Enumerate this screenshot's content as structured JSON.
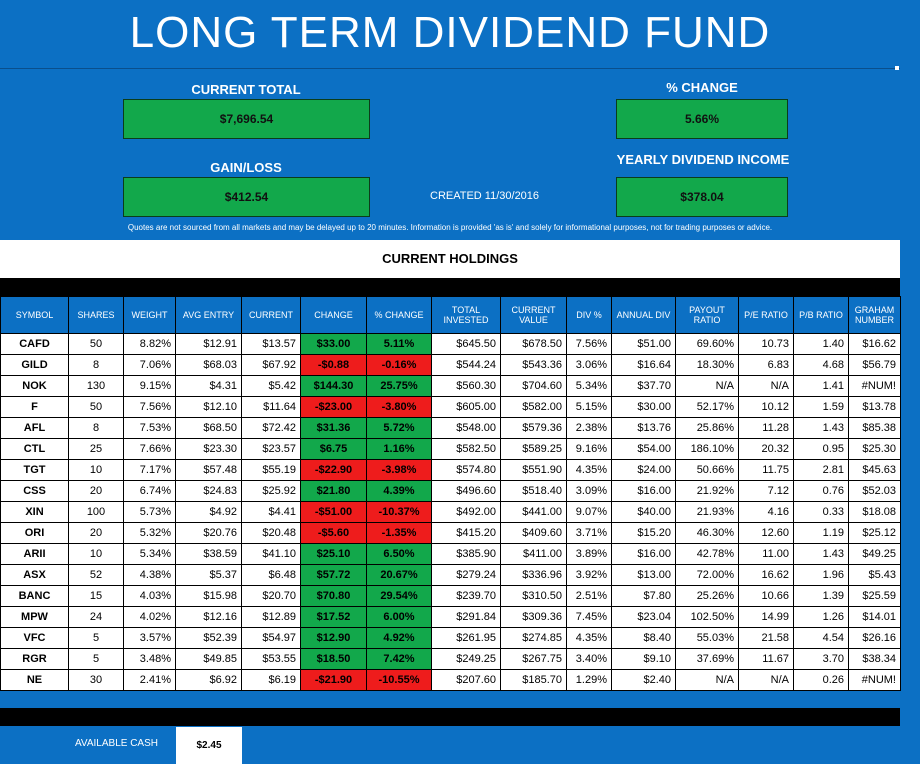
{
  "title": "LONG TERM DIVIDEND FUND",
  "current_total": {
    "label": "CURRENT TOTAL",
    "value": "$7,696.54"
  },
  "pct_change": {
    "label": "% CHANGE",
    "value": "5.66%"
  },
  "gain_loss": {
    "label": "GAIN/LOSS",
    "value": "$412.54"
  },
  "yearly_dividend": {
    "label": "YEARLY DIVIDEND INCOME",
    "value": "$378.04"
  },
  "created": "CREATED 11/30/2016",
  "disclaimer": "Quotes are not sourced from all markets and may be delayed up to 20 minutes. Information is provided 'as is' and solely for informational purposes, not for trading purposes or advice.",
  "holdings_title": "CURRENT HOLDINGS",
  "columns": [
    "SYMBOL",
    "SHARES",
    "WEIGHT",
    "AVG ENTRY",
    "CURRENT",
    "CHANGE",
    "% CHANGE",
    "TOTAL INVESTED",
    "CURRENT VALUE",
    "DIV %",
    "ANNUAL DIV",
    "PAYOUT RATIO",
    "P/E RATIO",
    "P/B RATIO",
    "GRAHAM NUMBER"
  ],
  "rows": [
    [
      "CAFD",
      "50",
      "8.82%",
      "$12.91",
      "$13.57",
      "$33.00",
      "5.11%",
      "$645.50",
      "$678.50",
      "7.56%",
      "$51.00",
      "69.60%",
      "10.73",
      "1.40",
      "$16.62"
    ],
    [
      "GILD",
      "8",
      "7.06%",
      "$68.03",
      "$67.92",
      "-$0.88",
      "-0.16%",
      "$544.24",
      "$543.36",
      "3.06%",
      "$16.64",
      "18.30%",
      "6.83",
      "4.68",
      "$56.79"
    ],
    [
      "NOK",
      "130",
      "9.15%",
      "$4.31",
      "$5.42",
      "$144.30",
      "25.75%",
      "$560.30",
      "$704.60",
      "5.34%",
      "$37.70",
      "N/A",
      "N/A",
      "1.41",
      "#NUM!"
    ],
    [
      "F",
      "50",
      "7.56%",
      "$12.10",
      "$11.64",
      "-$23.00",
      "-3.80%",
      "$605.00",
      "$582.00",
      "5.15%",
      "$30.00",
      "52.17%",
      "10.12",
      "1.59",
      "$13.78"
    ],
    [
      "AFL",
      "8",
      "7.53%",
      "$68.50",
      "$72.42",
      "$31.36",
      "5.72%",
      "$548.00",
      "$579.36",
      "2.38%",
      "$13.76",
      "25.86%",
      "11.28",
      "1.43",
      "$85.38"
    ],
    [
      "CTL",
      "25",
      "7.66%",
      "$23.30",
      "$23.57",
      "$6.75",
      "1.16%",
      "$582.50",
      "$589.25",
      "9.16%",
      "$54.00",
      "186.10%",
      "20.32",
      "0.95",
      "$25.30"
    ],
    [
      "TGT",
      "10",
      "7.17%",
      "$57.48",
      "$55.19",
      "-$22.90",
      "-3.98%",
      "$574.80",
      "$551.90",
      "4.35%",
      "$24.00",
      "50.66%",
      "11.75",
      "2.81",
      "$45.63"
    ],
    [
      "CSS",
      "20",
      "6.74%",
      "$24.83",
      "$25.92",
      "$21.80",
      "4.39%",
      "$496.60",
      "$518.40",
      "3.09%",
      "$16.00",
      "21.92%",
      "7.12",
      "0.76",
      "$52.03"
    ],
    [
      "XIN",
      "100",
      "5.73%",
      "$4.92",
      "$4.41",
      "-$51.00",
      "-10.37%",
      "$492.00",
      "$441.00",
      "9.07%",
      "$40.00",
      "21.93%",
      "4.16",
      "0.33",
      "$18.08"
    ],
    [
      "ORI",
      "20",
      "5.32%",
      "$20.76",
      "$20.48",
      "-$5.60",
      "-1.35%",
      "$415.20",
      "$409.60",
      "3.71%",
      "$15.20",
      "46.30%",
      "12.60",
      "1.19",
      "$25.12"
    ],
    [
      "ARII",
      "10",
      "5.34%",
      "$38.59",
      "$41.10",
      "$25.10",
      "6.50%",
      "$385.90",
      "$411.00",
      "3.89%",
      "$16.00",
      "42.78%",
      "11.00",
      "1.43",
      "$49.25"
    ],
    [
      "ASX",
      "52",
      "4.38%",
      "$5.37",
      "$6.48",
      "$57.72",
      "20.67%",
      "$279.24",
      "$336.96",
      "3.92%",
      "$13.00",
      "72.00%",
      "16.62",
      "1.96",
      "$5.43"
    ],
    [
      "BANC",
      "15",
      "4.03%",
      "$15.98",
      "$20.70",
      "$70.80",
      "29.54%",
      "$239.70",
      "$310.50",
      "2.51%",
      "$7.80",
      "25.26%",
      "10.66",
      "1.39",
      "$25.59"
    ],
    [
      "MPW",
      "24",
      "4.02%",
      "$12.16",
      "$12.89",
      "$17.52",
      "6.00%",
      "$291.84",
      "$309.36",
      "7.45%",
      "$23.04",
      "102.50%",
      "14.99",
      "1.26",
      "$14.01"
    ],
    [
      "VFC",
      "5",
      "3.57%",
      "$52.39",
      "$54.97",
      "$12.90",
      "4.92%",
      "$261.95",
      "$274.85",
      "4.35%",
      "$8.40",
      "55.03%",
      "21.58",
      "4.54",
      "$26.16"
    ],
    [
      "RGR",
      "5",
      "3.48%",
      "$49.85",
      "$53.55",
      "$18.50",
      "7.42%",
      "$249.25",
      "$267.75",
      "3.40%",
      "$9.10",
      "37.69%",
      "11.67",
      "3.70",
      "$38.34"
    ],
    [
      "NE",
      "30",
      "2.41%",
      "$6.92",
      "$6.19",
      "-$21.90",
      "-10.55%",
      "$207.60",
      "$185.70",
      "1.29%",
      "$2.40",
      "N/A",
      "N/A",
      "0.26",
      "#NUM!"
    ]
  ],
  "available_cash": {
    "label": "AVAILABLE CASH",
    "value": "$2.45"
  },
  "colors": {
    "background": "#0c70c4",
    "positive": "#12a84b",
    "negative": "#ee1c1c"
  }
}
